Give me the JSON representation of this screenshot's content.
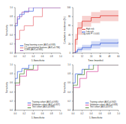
{
  "chart_data": [
    {
      "type": "line",
      "x_label": "1-Specificity",
      "y_label": "Sensitivity",
      "xlim": [
        0,
        1
      ],
      "ylim": [
        0,
        1
      ],
      "xticks": [
        {
          "value": 0,
          "label": "0.0"
        },
        0.2,
        0.4,
        0.6,
        0.8,
        {
          "value": 1,
          "label": "1.0"
        }
      ],
      "yticks": [
        {
          "value": 0,
          "label": "0.0"
        },
        0.2,
        0.4,
        0.6,
        0.8,
        {
          "value": 1,
          "label": "1.0"
        }
      ],
      "legend": "lower right",
      "series": [
        {
          "name": "Deep learning score (AUC=0.918)",
          "color": "#4a6fe3",
          "x": [
            0,
            0,
            0.05,
            0.05,
            0.1,
            0.1,
            0.2,
            0.2,
            0.4,
            0.4,
            1
          ],
          "values": [
            0,
            0.6,
            0.6,
            0.75,
            0.75,
            0.85,
            0.85,
            0.92,
            0.92,
            1,
            1
          ]
        },
        {
          "name": "CT conventional features (AUC=0.736)",
          "color": "#e8747c",
          "x": [
            0,
            0,
            0.1,
            0.1,
            0.2,
            0.2,
            0.4,
            0.4,
            0.6,
            0.6,
            1
          ],
          "values": [
            0,
            0.3,
            0.3,
            0.5,
            0.5,
            0.6,
            0.6,
            0.8,
            0.8,
            1,
            1
          ]
        },
        {
          "name": "CCRS (AUC=0.935)",
          "color": "#9b59b6",
          "x": [
            0,
            0,
            0.05,
            0.05,
            0.15,
            0.15,
            0.3,
            0.3,
            1
          ],
          "values": [
            0,
            0.65,
            0.65,
            0.8,
            0.8,
            0.9,
            0.9,
            1,
            1
          ]
        }
      ]
    },
    {
      "type": "step",
      "x_label": "Time (months)",
      "y_label": "Cumulative incidence (%)",
      "xlim": [
        0,
        60
      ],
      "ylim": [
        0,
        100
      ],
      "xticks": [
        0,
        12,
        24,
        36,
        48,
        60
      ],
      "yticks": [
        0,
        20,
        40,
        60,
        80,
        100
      ],
      "legend": "center left",
      "annotation": "Log-rank P < 0.001",
      "series": [
        {
          "name": "High risk",
          "color": "#e0302a",
          "x": [
            0,
            3,
            6,
            12,
            24,
            36,
            60
          ],
          "values": [
            0,
            30,
            55,
            70,
            78,
            82,
            82
          ],
          "lower": [
            0,
            18,
            40,
            58,
            66,
            70,
            70
          ],
          "upper": [
            0,
            42,
            68,
            82,
            90,
            94,
            94
          ]
        },
        {
          "name": "Low risk",
          "color": "#3a5fd9",
          "x": [
            0,
            3,
            6,
            12,
            24,
            36,
            60
          ],
          "values": [
            0,
            3,
            8,
            12,
            18,
            22,
            25
          ],
          "lower": [
            0,
            0,
            3,
            6,
            10,
            13,
            15
          ],
          "upper": [
            0,
            7,
            13,
            18,
            26,
            31,
            35
          ]
        }
      ]
    },
    {
      "type": "line",
      "x_label": "1-Specificity",
      "y_label": "Sensitivity",
      "xlim": [
        0,
        1
      ],
      "ylim": [
        0,
        1
      ],
      "xticks": [
        {
          "value": 0,
          "label": "0.0"
        },
        0.2,
        0.4,
        0.6,
        0.8,
        {
          "value": 1,
          "label": "1.0"
        }
      ],
      "yticks": [
        {
          "value": 0,
          "label": "0.0"
        },
        0.2,
        0.4,
        0.6,
        0.8,
        {
          "value": 1,
          "label": "1.0"
        }
      ],
      "legend": "lower right",
      "series": [
        {
          "name": "Training cohort (AUC=0.935)",
          "color": "#4a6fe3",
          "x": [
            0,
            0,
            0.05,
            0.05,
            0.15,
            0.15,
            0.3,
            0.3,
            1
          ],
          "values": [
            0,
            0.7,
            0.7,
            0.85,
            0.85,
            0.92,
            0.92,
            1,
            1
          ]
        },
        {
          "name": "Validation cohort (AUC=0.857)",
          "color": "#d94fa0",
          "x": [
            0,
            0,
            0.1,
            0.1,
            0.25,
            0.25,
            0.5,
            0.5,
            1
          ],
          "values": [
            0,
            0.55,
            0.55,
            0.75,
            0.75,
            0.88,
            0.88,
            1,
            1
          ]
        },
        {
          "name": "Test cohort (AUC=0.889)",
          "color": "#5a8a3c",
          "x": [
            0,
            0,
            0.1,
            0.1,
            0.2,
            0.2,
            0.4,
            0.4,
            1
          ],
          "values": [
            0,
            0.6,
            0.6,
            0.8,
            0.8,
            0.9,
            0.9,
            1,
            1
          ]
        }
      ]
    },
    {
      "type": "line",
      "x_label": "1-Specificity",
      "y_label": "Sensitivity",
      "xlim": [
        0,
        1
      ],
      "ylim": [
        0,
        1
      ],
      "xticks": [
        {
          "value": 0,
          "label": "0.0"
        },
        0.2,
        0.4,
        0.6,
        0.8,
        {
          "value": 1,
          "label": "1.0"
        }
      ],
      "yticks": [
        {
          "value": 0,
          "label": "0.0"
        },
        0.2,
        0.4,
        0.6,
        0.8,
        {
          "value": 1,
          "label": "1.0"
        }
      ],
      "legend": "lower right",
      "series": [
        {
          "name": "Training cohort (AUC=0.902)",
          "color": "#4a6fe3",
          "x": [
            0,
            0,
            0.05,
            0.05,
            0.2,
            0.2,
            0.35,
            0.35,
            1
          ],
          "values": [
            0,
            0.6,
            0.6,
            0.8,
            0.8,
            0.9,
            0.9,
            1,
            1
          ]
        },
        {
          "name": "Validation cohort (AUC=0.833)",
          "color": "#d94fa0",
          "x": [
            0,
            0,
            0.15,
            0.15,
            0.3,
            0.3,
            0.55,
            0.55,
            1
          ],
          "values": [
            0,
            0.5,
            0.5,
            0.7,
            0.7,
            0.85,
            0.85,
            1,
            1
          ]
        },
        {
          "name": "Test cohort (AUC=0.871)",
          "color": "#5a8a3c",
          "x": [
            0,
            0,
            0.1,
            0.1,
            0.25,
            0.25,
            0.45,
            0.45,
            1
          ],
          "values": [
            0,
            0.55,
            0.55,
            0.78,
            0.78,
            0.9,
            0.9,
            1,
            1
          ]
        }
      ]
    }
  ]
}
